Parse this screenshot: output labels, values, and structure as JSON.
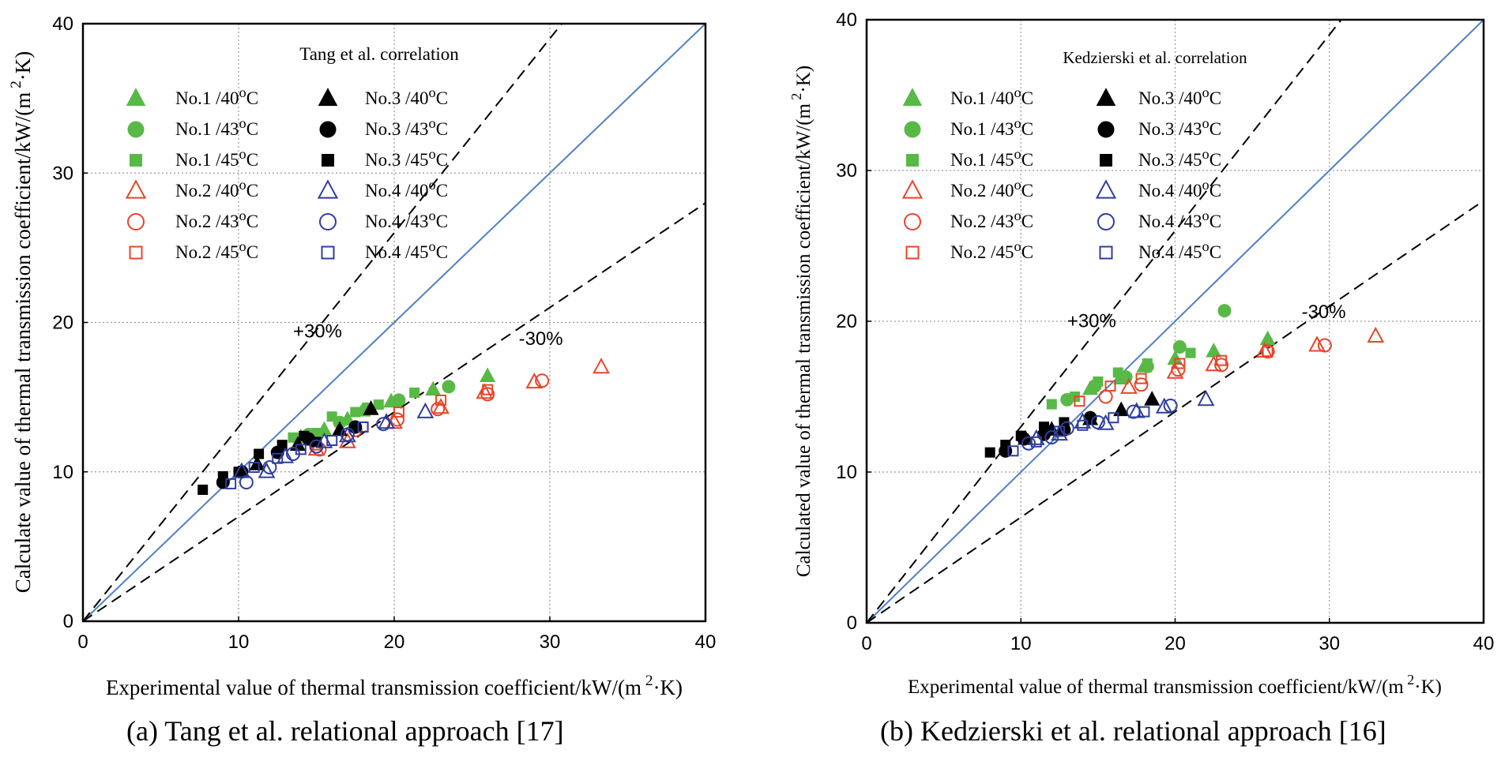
{
  "figure": {
    "caption_a": "(a) Tang et al. relational approach [17]",
    "caption_b": "(b) Kedzierski et al. relational approach [16]"
  },
  "colors": {
    "green": "#58b947",
    "black": "#000000",
    "red": "#e8452a",
    "blue": "#2f3e9e",
    "reference_line": "#4f7fc4",
    "grid": "#9a9a9a",
    "band_line": "#000000"
  },
  "legend_labels": [
    {
      "series_id": "no1_40",
      "prefix": "No.1 /40",
      "sup": "o",
      "suffix": "C"
    },
    {
      "series_id": "no1_43",
      "prefix": "No.1 /43",
      "sup": "o",
      "suffix": "C"
    },
    {
      "series_id": "no1_45",
      "prefix": "No.1 /45",
      "sup": "o",
      "suffix": "C"
    },
    {
      "series_id": "no2_40",
      "prefix": "No.2 /40",
      "sup": "o",
      "suffix": "C"
    },
    {
      "series_id": "no2_43",
      "prefix": "No.2 /43",
      "sup": "o",
      "suffix": "C"
    },
    {
      "series_id": "no2_45",
      "prefix": "No.2 /45",
      "sup": "o",
      "suffix": "C"
    },
    {
      "series_id": "no3_40",
      "prefix": "No.3 /40",
      "sup": "o",
      "suffix": "C"
    },
    {
      "series_id": "no3_43",
      "prefix": "No.3 /43",
      "sup": "o",
      "suffix": "C"
    },
    {
      "series_id": "no3_45",
      "prefix": "No.3 /45",
      "sup": "o",
      "suffix": "C"
    },
    {
      "series_id": "no4_40",
      "prefix": "No.4 /40",
      "sup": "o",
      "suffix": "C"
    },
    {
      "series_id": "no4_43",
      "prefix": "No.4 /43",
      "sup": "o",
      "suffix": "C"
    },
    {
      "series_id": "no4_45",
      "prefix": "No.4 /45",
      "sup": "o",
      "suffix": "C"
    }
  ],
  "chart_data": [
    {
      "id": "chart-a",
      "type": "scatter",
      "title": "Tang et al. correlation",
      "xlabel": {
        "main": "Experimental value of thermal transmission coefficient/kW/(m",
        "sup": "2",
        "tail": "·K)"
      },
      "ylabel": {
        "main": "Calculate value of thermal transmission coefficient/kW/(m",
        "sup": "2",
        "tail": "·K)"
      },
      "xlim": [
        0,
        40
      ],
      "ylim": [
        0,
        40
      ],
      "xticks": [
        "0",
        "10",
        "20",
        "30",
        "40"
      ],
      "yticks": [
        "0",
        "10",
        "20",
        "30",
        "40"
      ],
      "grid": true,
      "legend": "top-left, two columns",
      "band_labels": {
        "plus": "+30%",
        "minus": "-30%",
        "plus_at": [
          13.5,
          19
        ],
        "minus_at": [
          28,
          18.5
        ]
      },
      "reference_lines": {
        "parity": "y = x",
        "plus": "y = 1.3x",
        "minus": "y = 0.7x"
      },
      "series": [
        {
          "id": "no1_40",
          "marker": "triangle",
          "filled": true,
          "color": "green",
          "points": [
            [
              14.0,
              12.3
            ],
            [
              15.5,
              12.8
            ],
            [
              17.0,
              13.5
            ],
            [
              18.0,
              14.1
            ],
            [
              19.8,
              14.7
            ],
            [
              22.5,
              15.5
            ],
            [
              26.0,
              16.4
            ]
          ]
        },
        {
          "id": "no1_43",
          "marker": "circle",
          "filled": true,
          "color": "green",
          "points": [
            [
              14.5,
              12.5
            ],
            [
              16.5,
              13.3
            ],
            [
              18.2,
              14.2
            ],
            [
              20.3,
              14.8
            ],
            [
              23.5,
              15.7
            ]
          ]
        },
        {
          "id": "no1_45",
          "marker": "square",
          "filled": true,
          "color": "green",
          "points": [
            [
              13.5,
              12.3
            ],
            [
              15.0,
              12.6
            ],
            [
              16.0,
              13.7
            ],
            [
              17.5,
              14.0
            ],
            [
              19.0,
              14.5
            ],
            [
              21.3,
              15.3
            ]
          ]
        },
        {
          "id": "no2_40",
          "marker": "triangle",
          "filled": false,
          "color": "red",
          "points": [
            [
              15.0,
              11.5
            ],
            [
              17.0,
              12.0
            ],
            [
              20.0,
              13.3
            ],
            [
              23.0,
              14.3
            ],
            [
              25.8,
              15.3
            ],
            [
              29.0,
              16.0
            ],
            [
              33.3,
              17.0
            ]
          ]
        },
        {
          "id": "no2_43",
          "marker": "circle",
          "filled": false,
          "color": "red",
          "points": [
            [
              15.2,
              11.5
            ],
            [
              17.5,
              12.8
            ],
            [
              20.2,
              13.5
            ],
            [
              22.8,
              14.2
            ],
            [
              26.0,
              15.2
            ],
            [
              29.5,
              16.1
            ]
          ]
        },
        {
          "id": "no2_45",
          "marker": "square",
          "filled": false,
          "color": "red",
          "points": [
            [
              15.0,
              11.8
            ],
            [
              18.0,
              13.0
            ],
            [
              20.3,
              14.0
            ],
            [
              23.0,
              14.8
            ],
            [
              26.0,
              15.5
            ]
          ]
        },
        {
          "id": "no3_40",
          "marker": "triangle",
          "filled": true,
          "color": "black",
          "points": [
            [
              11.2,
              10.5
            ],
            [
              13.8,
              11.8
            ],
            [
              16.5,
              12.8
            ],
            [
              18.5,
              14.2
            ]
          ]
        },
        {
          "id": "no3_43",
          "marker": "circle",
          "filled": true,
          "color": "black",
          "points": [
            [
              9.0,
              9.3
            ],
            [
              10.2,
              10.0
            ],
            [
              12.5,
              11.3
            ],
            [
              14.5,
              12.2
            ],
            [
              17.5,
              13.0
            ]
          ]
        },
        {
          "id": "no3_45",
          "marker": "square",
          "filled": true,
          "color": "black",
          "points": [
            [
              7.7,
              8.8
            ],
            [
              9.0,
              9.7
            ],
            [
              10.0,
              10.0
            ],
            [
              11.3,
              11.2
            ],
            [
              12.8,
              11.8
            ],
            [
              14.2,
              12.4
            ],
            [
              15.0,
              12.0
            ]
          ]
        },
        {
          "id": "no4_40",
          "marker": "triangle",
          "filled": false,
          "color": "blue",
          "points": [
            [
              10.2,
              10.0
            ],
            [
              11.8,
              10.0
            ],
            [
              13.0,
              11.0
            ],
            [
              15.5,
              12.0
            ],
            [
              17.0,
              12.4
            ],
            [
              19.5,
              13.3
            ],
            [
              22.0,
              14.0
            ]
          ]
        },
        {
          "id": "no4_43",
          "marker": "circle",
          "filled": false,
          "color": "blue",
          "points": [
            [
              10.5,
              9.3
            ],
            [
              12.0,
              10.3
            ],
            [
              13.5,
              11.2
            ],
            [
              15.0,
              11.7
            ],
            [
              17.0,
              12.5
            ],
            [
              19.3,
              13.2
            ]
          ]
        },
        {
          "id": "no4_45",
          "marker": "square",
          "filled": false,
          "color": "blue",
          "points": [
            [
              9.5,
              9.2
            ],
            [
              11.0,
              10.3
            ],
            [
              12.5,
              10.9
            ],
            [
              14.0,
              11.5
            ],
            [
              16.0,
              12.1
            ],
            [
              18.0,
              13.0
            ]
          ]
        }
      ]
    },
    {
      "id": "chart-b",
      "type": "scatter",
      "title": "Kedzierski et al. correlation",
      "xlabel": {
        "main": "Experimental value of thermal transmission coefficient/kW/(m",
        "sup": "2",
        "tail": "·K)"
      },
      "ylabel": {
        "main": "Calculated value of thermal transmission coefficient/kW/(m",
        "sup": "2",
        "tail": "·K)"
      },
      "xlim": [
        0,
        40
      ],
      "ylim": [
        0,
        40
      ],
      "xticks": [
        "0",
        "10",
        "20",
        "30",
        "40"
      ],
      "yticks": [
        "0",
        "10",
        "20",
        "30",
        "40"
      ],
      "grid": true,
      "legend": "top-left, two columns",
      "band_labels": {
        "plus": "+30%",
        "minus": "-30%",
        "plus_at": [
          13,
          19.6
        ],
        "minus_at": [
          28.2,
          20.2
        ]
      },
      "reference_lines": {
        "parity": "y = x",
        "plus": "y = 1.3x",
        "minus": "y = 0.7x"
      },
      "series": [
        {
          "id": "no1_40",
          "marker": "triangle",
          "filled": true,
          "color": "green",
          "points": [
            [
              14.5,
              15.5
            ],
            [
              16.5,
              16.2
            ],
            [
              18.0,
              17.0
            ],
            [
              20.0,
              17.5
            ],
            [
              22.5,
              18.0
            ],
            [
              26.0,
              18.8
            ]
          ]
        },
        {
          "id": "no1_43",
          "marker": "circle",
          "filled": true,
          "color": "green",
          "points": [
            [
              13.0,
              14.8
            ],
            [
              14.8,
              15.7
            ],
            [
              16.8,
              16.3
            ],
            [
              18.2,
              17.0
            ],
            [
              20.3,
              18.3
            ],
            [
              23.2,
              20.7
            ]
          ]
        },
        {
          "id": "no1_45",
          "marker": "square",
          "filled": true,
          "color": "green",
          "points": [
            [
              12.0,
              14.5
            ],
            [
              13.5,
              15.0
            ],
            [
              15.0,
              16.0
            ],
            [
              16.3,
              16.6
            ],
            [
              18.2,
              17.2
            ],
            [
              21.0,
              17.9
            ]
          ]
        },
        {
          "id": "no2_40",
          "marker": "triangle",
          "filled": false,
          "color": "red",
          "points": [
            [
              17.0,
              15.6
            ],
            [
              20.0,
              16.6
            ],
            [
              22.5,
              17.1
            ],
            [
              25.8,
              18.0
            ],
            [
              29.2,
              18.4
            ],
            [
              33.0,
              19.0
            ]
          ]
        },
        {
          "id": "no2_43",
          "marker": "circle",
          "filled": false,
          "color": "red",
          "points": [
            [
              15.5,
              15.0
            ],
            [
              17.8,
              15.8
            ],
            [
              20.2,
              16.8
            ],
            [
              23.0,
              17.1
            ],
            [
              26.0,
              18.0
            ],
            [
              29.7,
              18.4
            ]
          ]
        },
        {
          "id": "no2_45",
          "marker": "square",
          "filled": false,
          "color": "red",
          "points": [
            [
              13.8,
              14.7
            ],
            [
              15.8,
              15.7
            ],
            [
              17.8,
              16.2
            ],
            [
              20.3,
              17.2
            ],
            [
              23.0,
              17.4
            ],
            [
              26.0,
              18.0
            ]
          ]
        },
        {
          "id": "no3_40",
          "marker": "triangle",
          "filled": true,
          "color": "black",
          "points": [
            [
              10.3,
              12.2
            ],
            [
              12.0,
              12.8
            ],
            [
              14.5,
              13.5
            ],
            [
              16.5,
              14.1
            ],
            [
              18.5,
              14.8
            ]
          ]
        },
        {
          "id": "no3_43",
          "marker": "circle",
          "filled": true,
          "color": "black",
          "points": [
            [
              9.0,
              11.4
            ],
            [
              10.2,
              12.2
            ],
            [
              11.5,
              12.5
            ],
            [
              12.8,
              12.8
            ],
            [
              14.5,
              13.6
            ]
          ]
        },
        {
          "id": "no3_45",
          "marker": "square",
          "filled": true,
          "color": "black",
          "points": [
            [
              8.0,
              11.3
            ],
            [
              9.0,
              11.8
            ],
            [
              10.0,
              12.4
            ],
            [
              11.5,
              13.0
            ],
            [
              12.8,
              13.3
            ]
          ]
        },
        {
          "id": "no4_40",
          "marker": "triangle",
          "filled": false,
          "color": "blue",
          "points": [
            [
              11.0,
              12.2
            ],
            [
              12.5,
              12.5
            ],
            [
              14.0,
              13.3
            ],
            [
              15.5,
              13.2
            ],
            [
              17.5,
              14.0
            ],
            [
              19.3,
              14.3
            ],
            [
              22.0,
              14.8
            ]
          ]
        },
        {
          "id": "no4_43",
          "marker": "circle",
          "filled": false,
          "color": "blue",
          "points": [
            [
              10.5,
              11.9
            ],
            [
              12.0,
              12.3
            ],
            [
              13.0,
              12.9
            ],
            [
              15.0,
              13.3
            ],
            [
              17.3,
              14.0
            ],
            [
              19.7,
              14.4
            ]
          ]
        },
        {
          "id": "no4_45",
          "marker": "square",
          "filled": false,
          "color": "blue",
          "points": [
            [
              9.5,
              11.4
            ],
            [
              11.0,
              12.0
            ],
            [
              12.5,
              12.7
            ],
            [
              14.0,
              13.1
            ],
            [
              16.0,
              13.6
            ],
            [
              18.0,
              14.0
            ]
          ]
        }
      ]
    }
  ]
}
